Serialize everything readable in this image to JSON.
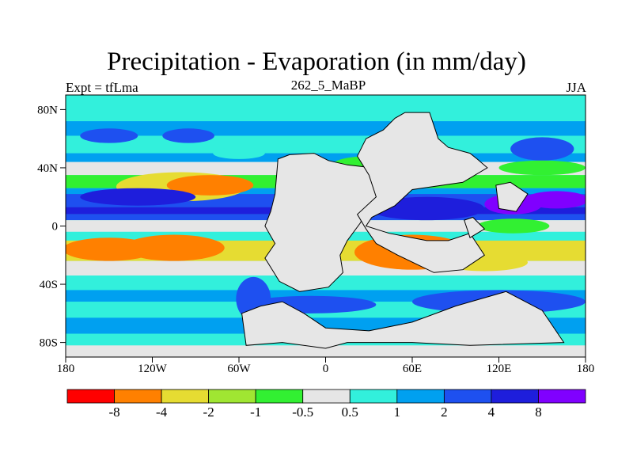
{
  "title": "Precipitation - Evaporation (in mm/day)",
  "subtitle_left": "Expt = tfLma",
  "subtitle_center": "262_5_MaBP",
  "subtitle_right": "JJA",
  "map": {
    "projection": "cylindrical-equidistant",
    "lon_range": [
      -180,
      180
    ],
    "lat_range": [
      -90,
      90
    ],
    "continent_color": "#e6e6e6"
  },
  "axes": {
    "x_ticks": [
      {
        "value": -180,
        "label": "180"
      },
      {
        "value": -120,
        "label": "120W"
      },
      {
        "value": -60,
        "label": "60W"
      },
      {
        "value": 0,
        "label": "0"
      },
      {
        "value": 60,
        "label": "60E"
      },
      {
        "value": 120,
        "label": "120E"
      },
      {
        "value": 180,
        "label": "180"
      }
    ],
    "y_ticks": [
      {
        "value": 80,
        "label": "80N"
      },
      {
        "value": 40,
        "label": "40N"
      },
      {
        "value": 0,
        "label": "0"
      },
      {
        "value": -40,
        "label": "40S"
      },
      {
        "value": -80,
        "label": "80S"
      }
    ]
  },
  "colorbar": {
    "colors": [
      "#ff0000",
      "#ff8000",
      "#e6dc32",
      "#a0e632",
      "#32f032",
      "#e6e6e6",
      "#32f0dc",
      "#00a0f0",
      "#1e50f0",
      "#1e1edc",
      "#8000ff"
    ],
    "labels": [
      "-8",
      "-4",
      "-2",
      "-1",
      "-0.5",
      "0.5",
      "1",
      "2",
      "4",
      "8"
    ]
  },
  "legend": {
    "palette": {
      "dry2": "#ff8000",
      "dry3": "#e6dc32",
      "dry4": "#a0e632",
      "dry5": "#32f032",
      "neutral": "#e6e6e6",
      "wet1": "#32f0dc",
      "wet2": "#00a0f0",
      "wet3": "#1e50f0",
      "wet4": "#1e1edc",
      "wet5": "#8000ff"
    }
  }
}
